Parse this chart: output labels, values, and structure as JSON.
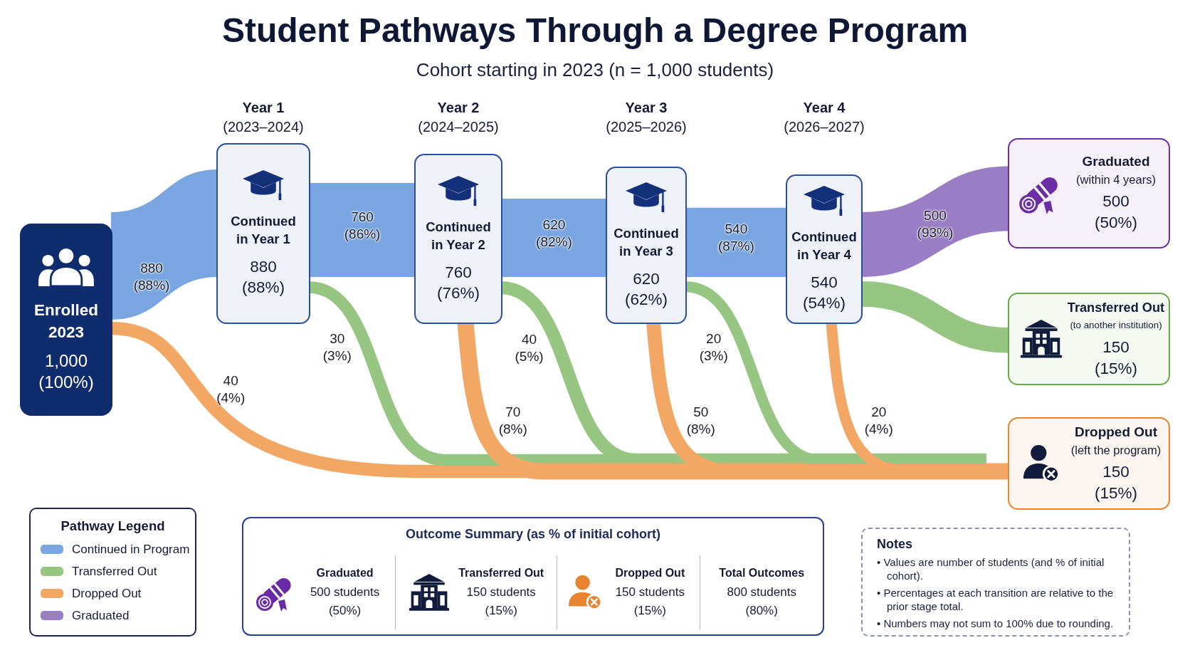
{
  "chart_data": [
    {
      "type": "other",
      "title": "Student Pathways Through a Degree Program",
      "subtitle": "Cohort starting in 2023 (n = 1,000 students)",
      "categories": [
        "Enrolled 2023",
        "Continued in Year 1",
        "Continued in Year 2",
        "Continued in Year 3",
        "Continued in Year 4",
        "Graduated (within 4 years)",
        "Transferred Out (to another institution)",
        "Dropped Out (left the program)"
      ],
      "values": [
        1000,
        880,
        760,
        620,
        540,
        500,
        150,
        150
      ],
      "value_labels": [
        "1,000 (100%)",
        "880 (88%)",
        "760 (76%)",
        "620 (62%)",
        "540 (54%)",
        "500 (50%)",
        "150 (15%)",
        "150 (15%)"
      ],
      "colors": [
        "#0f2c6c",
        "#2a4f9f",
        "#2a4f9f",
        "#2a4f9f",
        "#2a4f9f",
        "#6b2ea3",
        "#68a94a",
        "#e9842f"
      ],
      "series": [
        {
          "name": "Continued in Program",
          "color": "#79a6e0",
          "values": [
            880,
            760,
            620,
            540,
            null,
            null,
            null,
            null
          ],
          "value_labels": [
            "880 (88%)",
            "760 (86%)",
            "620 (82%)",
            "540 (87%)",
            null,
            null,
            null,
            null
          ]
        },
        {
          "name": "Transferred Out",
          "color": "#97c682",
          "values": [
            null,
            30,
            40,
            20,
            null,
            null,
            null,
            null
          ],
          "value_labels": [
            null,
            "30 (3%)",
            "40 (5%)",
            "20 (3%)",
            null,
            null,
            null,
            null
          ]
        },
        {
          "name": "Dropped Out",
          "color": "#f2a864",
          "values": [
            40,
            null,
            70,
            50,
            20,
            null,
            null,
            null
          ],
          "value_labels": [
            "40 (4%)",
            null,
            "70 (8%)",
            "50 (8%)",
            "20 (4%)",
            null,
            null,
            null
          ]
        },
        {
          "name": "Graduated",
          "color": "#9a7ec5",
          "values": [
            null,
            null,
            null,
            null,
            500,
            null,
            null,
            null
          ],
          "value_labels": [
            null,
            null,
            null,
            null,
            "500 (93%)",
            null,
            null,
            null
          ]
        }
      ],
      "annotations": [
        "Year 1 (2023–2024)",
        "Year 2 (2024–2025)",
        "Year 3 (2025–2026)",
        "Year 4 (2026–2027)"
      ],
      "legend": "bottom left",
      "legend_title": "Pathway Legend"
    },
    {
      "type": "other",
      "title": "Outcome Summary (as % of initial cohort)",
      "categories": [
        "Graduated",
        "Transferred Out",
        "Dropped Out",
        "Total Outcomes"
      ],
      "value_labels": [
        "500 students (50%)",
        "150 students (15%)",
        "150 students (15%)",
        "800 students (80%)"
      ]
    },
    {
      "type": "other",
      "title": "Notes",
      "annotations": [
        "• Values are number of students (and % of initial cohort).",
        "• Percentages at each transition are relative to the prior stage total.",
        "• Numbers may not sum to 100% due to rounding."
      ]
    }
  ]
}
